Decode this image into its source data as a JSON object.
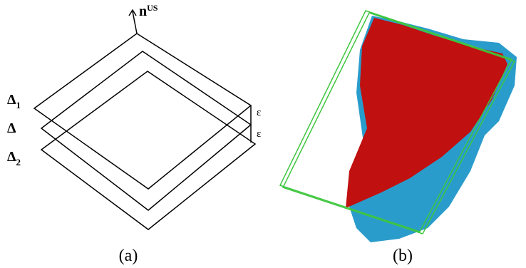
{
  "panel_a": {
    "normal": {
      "base": "n",
      "sup": "US"
    },
    "planes": [
      {
        "base": "Δ",
        "sub": "1"
      },
      {
        "base": "Δ"
      },
      {
        "base": "Δ",
        "sub": "2"
      }
    ],
    "epsilons": [
      "ε",
      "ε"
    ]
  },
  "captions": [
    "(a)",
    "(b)"
  ]
}
